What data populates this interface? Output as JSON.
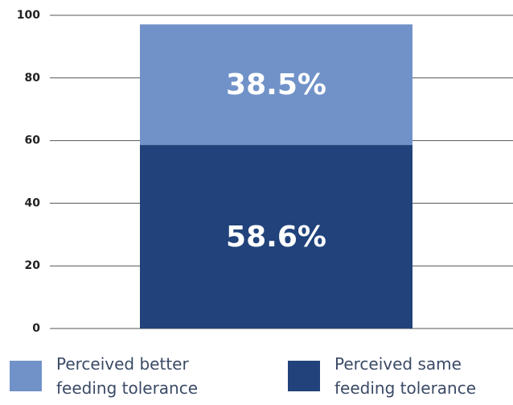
{
  "chart_data": {
    "type": "bar",
    "stacked": true,
    "categories": [
      null
    ],
    "series": [
      {
        "name": "Perceived same feeding tolerance",
        "color": "#21427a",
        "values": [
          58.6
        ],
        "value_labels": [
          "58.6%"
        ]
      },
      {
        "name": "Perceived better feeding tolerance",
        "color": "#7192c8",
        "values": [
          38.5
        ],
        "value_labels": [
          "38.5%"
        ]
      }
    ],
    "ylim": [
      0,
      100
    ],
    "yticks": [
      0,
      20,
      40,
      60,
      80,
      100
    ],
    "grid": true
  }
}
